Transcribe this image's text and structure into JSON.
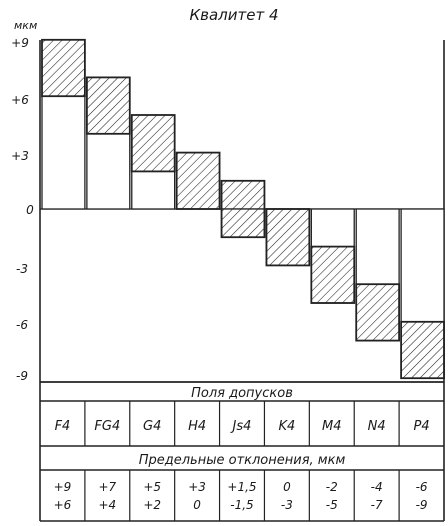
{
  "title": "Квалитет 4",
  "unit": "мкм",
  "y_ticks": [
    "+9",
    "+6",
    "+3",
    "0",
    "-3",
    "-6",
    "-9"
  ],
  "section_fields_label": "Поля допусков",
  "section_limits_label": "Предельные отклонения, мкм",
  "chart_data": {
    "type": "bar",
    "title": "Квалитет 4",
    "ylabel": "мкм",
    "ylim": [
      -9,
      9
    ],
    "y_ticks": [
      9,
      6,
      3,
      0,
      -3,
      -6,
      -9
    ],
    "grid": false,
    "categories": [
      "F4",
      "FG4",
      "G4",
      "H4",
      "Js4",
      "K4",
      "M4",
      "N4",
      "P4"
    ],
    "upper": [
      9,
      7,
      5,
      3,
      1.5,
      0,
      -2,
      -4,
      -6
    ],
    "lower": [
      6,
      4,
      2,
      0,
      -1.5,
      -3,
      -5,
      -7,
      -9
    ]
  },
  "columns": [
    {
      "label": "F4",
      "upper_text": "+9",
      "lower_text": "+6"
    },
    {
      "label": "FG4",
      "upper_text": "+7",
      "lower_text": "+4"
    },
    {
      "label": "G4",
      "upper_text": "+5",
      "lower_text": "+2"
    },
    {
      "label": "H4",
      "upper_text": "+3",
      "lower_text": "0"
    },
    {
      "label": "Js4",
      "upper_text": "+1,5",
      "lower_text": "-1,5"
    },
    {
      "label": "K4",
      "upper_text": "0",
      "lower_text": "-3"
    },
    {
      "label": "M4",
      "upper_text": "-2",
      "lower_text": "-5"
    },
    {
      "label": "N4",
      "upper_text": "-4",
      "lower_text": "-7"
    },
    {
      "label": "P4",
      "upper_text": "-6",
      "lower_text": "-9"
    }
  ]
}
